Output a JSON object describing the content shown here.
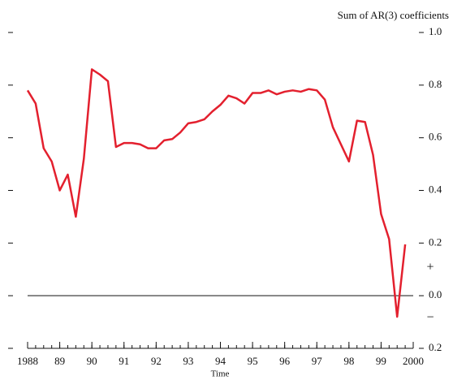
{
  "chart_data": {
    "type": "line",
    "title": "Sum of AR(3) coefficients",
    "xlabel": "Time",
    "annotations": [
      "+",
      "−"
    ],
    "x": [
      1988,
      1988.25,
      1988.5,
      1988.75,
      1989,
      1989.25,
      1989.5,
      1989.75,
      1990,
      1990.25,
      1990.5,
      1990.75,
      1991,
      1991.25,
      1991.5,
      1991.75,
      1992,
      1992.25,
      1992.5,
      1992.75,
      1993,
      1993.25,
      1993.5,
      1993.75,
      1994,
      1994.25,
      1994.5,
      1994.75,
      1995,
      1995.25,
      1995.5,
      1995.75,
      1996,
      1996.25,
      1996.5,
      1996.75,
      1997,
      1997.25,
      1997.5,
      1997.75,
      1998,
      1998.25,
      1998.5,
      1998.75,
      1999,
      1999.25,
      1999.5,
      1999.75
    ],
    "series": [
      {
        "name": "Sum of AR(3) coefficients",
        "color": "#e3202e",
        "values": [
          0.78,
          0.73,
          0.56,
          0.51,
          0.4,
          0.46,
          0.3,
          0.52,
          0.86,
          0.84,
          0.815,
          0.565,
          0.58,
          0.58,
          0.575,
          0.56,
          0.56,
          0.59,
          0.595,
          0.62,
          0.655,
          0.66,
          0.67,
          0.7,
          0.725,
          0.76,
          0.75,
          0.73,
          0.77,
          0.77,
          0.78,
          0.765,
          0.775,
          0.78,
          0.775,
          0.785,
          0.78,
          0.745,
          0.64,
          0.575,
          0.51,
          0.665,
          0.66,
          0.535,
          0.31,
          0.215,
          -0.08,
          0.195
        ]
      }
    ],
    "xlim": [
      1988,
      2000
    ],
    "xticks": [
      1988,
      {
        "value": 1989,
        "label": "89"
      },
      {
        "value": 1990,
        "label": "90"
      },
      {
        "value": 1991,
        "label": "91"
      },
      {
        "value": 1992,
        "label": "92"
      },
      {
        "value": 1993,
        "label": "93"
      },
      {
        "value": 1994,
        "label": "94"
      },
      {
        "value": 1995,
        "label": "95"
      },
      {
        "value": 1996,
        "label": "96"
      },
      {
        "value": 1997,
        "label": "97"
      },
      {
        "value": 1998,
        "label": "98"
      },
      {
        "value": 1999,
        "label": "99"
      },
      2000
    ],
    "ylim": [
      -0.2,
      1.0
    ],
    "yticks": [
      {
        "value": 1,
        "label": "1.0"
      },
      0.8,
      0.6,
      0.4,
      0.2,
      {
        "value": 0,
        "label": "0.0"
      },
      {
        "value": -0.2,
        "label": "0.2"
      }
    ],
    "hline": 0
  }
}
